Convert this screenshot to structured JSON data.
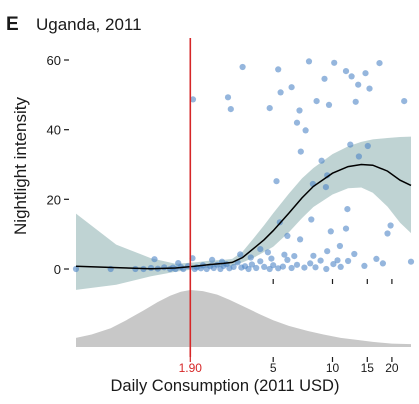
{
  "panel_label": "E",
  "colors": {
    "points": "#4f86c6",
    "band": "#a9c4c4",
    "curve": "#000000",
    "density": "#c8c8c8",
    "threshold": "#d62728"
  },
  "chart_data": {
    "type": "scatter",
    "title": "Uganda, 2011",
    "xlabel": "Daily Consumption (2011 USD)",
    "ylabel": "Nightlight intensity",
    "x_scale": "log",
    "xlim": [
      0.5,
      25
    ],
    "ylim": [
      0,
      60
    ],
    "y_ticks": [
      0,
      20,
      40,
      60
    ],
    "x_ticks": [
      {
        "value": 1.9,
        "label": "1.90",
        "highlight": true
      },
      {
        "value": 5,
        "label": "5"
      },
      {
        "value": 10,
        "label": "10"
      },
      {
        "value": 15,
        "label": "15"
      },
      {
        "value": 20,
        "label": "20"
      }
    ],
    "threshold_x": 1.9,
    "points": [
      [
        1.96,
        48.7
      ],
      [
        2.95,
        49.3
      ],
      [
        3.5,
        58
      ],
      [
        4.8,
        46.2
      ],
      [
        5.3,
        57.3
      ],
      [
        5.45,
        50.7
      ],
      [
        6.2,
        52.2
      ],
      [
        6.8,
        45.5
      ],
      [
        7.6,
        59.6
      ],
      [
        8.3,
        48.2
      ],
      [
        9.1,
        54.6
      ],
      [
        9.6,
        47.1
      ],
      [
        10.2,
        59.2
      ],
      [
        11.7,
        56.8
      ],
      [
        12.5,
        55.3
      ],
      [
        13.5,
        52.9
      ],
      [
        13.1,
        48
      ],
      [
        14.7,
        56.2
      ],
      [
        15.4,
        51.8
      ],
      [
        17.3,
        59.1
      ],
      [
        23.1,
        48.2
      ],
      [
        6.6,
        42
      ],
      [
        7.3,
        39.8
      ],
      [
        3.05,
        45.9
      ],
      [
        6.9,
        33.7
      ],
      [
        8.8,
        31.1
      ],
      [
        9.4,
        26.9
      ],
      [
        12.3,
        35.7
      ],
      [
        13.6,
        32.3
      ],
      [
        15.1,
        35.3
      ],
      [
        5.2,
        25.2
      ],
      [
        7.95,
        24.4
      ],
      [
        9.25,
        23.5
      ],
      [
        11.9,
        17.2
      ],
      [
        19,
        10.2
      ],
      [
        19.7,
        12.5
      ],
      [
        5.4,
        13.4
      ],
      [
        7.8,
        14.2
      ],
      [
        11.7,
        11.6
      ],
      [
        5.9,
        9.5
      ],
      [
        6.85,
        8.5
      ],
      [
        9.4,
        5.1
      ],
      [
        10.9,
        6.6
      ],
      [
        12.9,
        4.3
      ],
      [
        16.7,
        2.9
      ],
      [
        25,
        2.1
      ],
      [
        4.3,
        5.7
      ],
      [
        4.7,
        4.8
      ],
      [
        3.4,
        4.2
      ],
      [
        9.8,
        10.8
      ],
      [
        0.5,
        0
      ],
      [
        0.75,
        0
      ],
      [
        1.0,
        0
      ],
      [
        1.1,
        0
      ],
      [
        1.2,
        0.3
      ],
      [
        1.3,
        0.1
      ],
      [
        1.4,
        0.5
      ],
      [
        1.5,
        0
      ],
      [
        1.55,
        0.4
      ],
      [
        1.6,
        0
      ],
      [
        1.7,
        0.6
      ],
      [
        1.75,
        0
      ],
      [
        1.85,
        0.8
      ],
      [
        2.0,
        0
      ],
      [
        2.05,
        0.5
      ],
      [
        2.15,
        0.2
      ],
      [
        2.2,
        1.1
      ],
      [
        2.3,
        0
      ],
      [
        2.4,
        0.8
      ],
      [
        2.5,
        0.3
      ],
      [
        2.6,
        1.2
      ],
      [
        2.7,
        0
      ],
      [
        2.8,
        0.9
      ],
      [
        2.9,
        1.4
      ],
      [
        3.0,
        0.2
      ],
      [
        3.15,
        0.6
      ],
      [
        3.3,
        1.9
      ],
      [
        3.45,
        0.4
      ],
      [
        3.6,
        0.8
      ],
      [
        3.75,
        0
      ],
      [
        3.9,
        1.3
      ],
      [
        4.1,
        0.3
      ],
      [
        4.3,
        2.2
      ],
      [
        4.5,
        0.6
      ],
      [
        4.8,
        0
      ],
      [
        5.0,
        1.1
      ],
      [
        5.3,
        0.2
      ],
      [
        5.6,
        0.7
      ],
      [
        5.9,
        2.6
      ],
      [
        6.2,
        0.3
      ],
      [
        6.6,
        1.2
      ],
      [
        7.2,
        0.4
      ],
      [
        7.7,
        1.6
      ],
      [
        8.2,
        0.5
      ],
      [
        8.7,
        2.4
      ],
      [
        9.3,
        0
      ],
      [
        10.1,
        1.4
      ],
      [
        11.0,
        0.6
      ],
      [
        12.0,
        2.3
      ],
      [
        14.5,
        0.9
      ],
      [
        18.0,
        1.6
      ],
      [
        1.25,
        2.8
      ],
      [
        1.95,
        3.1
      ],
      [
        2.45,
        2.6
      ],
      [
        3.85,
        3.3
      ],
      [
        4.9,
        3.0
      ],
      [
        5.7,
        4.1
      ],
      [
        6.4,
        3.7
      ],
      [
        8.0,
        3.8
      ],
      [
        10.6,
        2.5
      ],
      [
        1.65,
        1.7
      ],
      [
        2.75,
        2.1
      ]
    ],
    "fit_curve": [
      [
        0.5,
        0.8
      ],
      [
        0.8,
        0.4
      ],
      [
        1.2,
        0.1
      ],
      [
        1.6,
        0.3
      ],
      [
        2.0,
        0.8
      ],
      [
        2.4,
        1.3
      ],
      [
        2.8,
        1.6
      ],
      [
        3.1,
        1.9
      ],
      [
        3.5,
        3.3
      ],
      [
        4.0,
        6
      ],
      [
        4.5,
        8.4
      ],
      [
        5.0,
        11
      ],
      [
        6.0,
        16
      ],
      [
        7.0,
        20.4
      ],
      [
        8.0,
        23.7
      ],
      [
        10.0,
        27.5
      ],
      [
        12.0,
        29.4
      ],
      [
        14.0,
        30
      ],
      [
        16.0,
        29.8
      ],
      [
        19.0,
        28.1
      ],
      [
        22.0,
        25.5
      ],
      [
        25.0,
        24
      ]
    ],
    "band_upper": [
      [
        0.5,
        15.9
      ],
      [
        0.8,
        7
      ],
      [
        1.2,
        3.1
      ],
      [
        1.6,
        1.5
      ],
      [
        2.0,
        1.9
      ],
      [
        2.4,
        2.4
      ],
      [
        2.8,
        2.6
      ],
      [
        3.1,
        2.9
      ],
      [
        3.5,
        5
      ],
      [
        4.0,
        9
      ],
      [
        4.5,
        12.6
      ],
      [
        5.0,
        16
      ],
      [
        6.0,
        21.6
      ],
      [
        7.0,
        26
      ],
      [
        8.0,
        29
      ],
      [
        10.0,
        33
      ],
      [
        12.0,
        35.2
      ],
      [
        14.0,
        36.5
      ],
      [
        16.0,
        37.2
      ],
      [
        19.0,
        37.6
      ],
      [
        22.0,
        37.9
      ],
      [
        25.0,
        38
      ]
    ],
    "band_lower": [
      [
        0.5,
        -6
      ],
      [
        0.8,
        -4.5
      ],
      [
        1.2,
        -2.1
      ],
      [
        1.6,
        -0.8
      ],
      [
        2.0,
        -0.1
      ],
      [
        2.4,
        0.4
      ],
      [
        2.8,
        0.7
      ],
      [
        3.1,
        0.9
      ],
      [
        3.5,
        1.9
      ],
      [
        4.0,
        3.3
      ],
      [
        4.5,
        4.9
      ],
      [
        5.0,
        6.4
      ],
      [
        6.0,
        10.5
      ],
      [
        7.0,
        14.6
      ],
      [
        8.0,
        17.8
      ],
      [
        10.0,
        21.4
      ],
      [
        12.0,
        23.2
      ],
      [
        14.0,
        23.4
      ],
      [
        16.0,
        21.9
      ],
      [
        19.0,
        17.9
      ],
      [
        22.0,
        13.3
      ],
      [
        25.0,
        10.3
      ]
    ],
    "density_curve": [
      [
        0.5,
        0.16
      ],
      [
        0.6,
        0.22
      ],
      [
        0.75,
        0.33
      ],
      [
        0.9,
        0.47
      ],
      [
        1.1,
        0.64
      ],
      [
        1.3,
        0.79
      ],
      [
        1.5,
        0.9
      ],
      [
        1.7,
        0.97
      ],
      [
        1.9,
        1.0
      ],
      [
        2.2,
        0.98
      ],
      [
        2.6,
        0.92
      ],
      [
        3.0,
        0.83
      ],
      [
        3.6,
        0.7
      ],
      [
        4.3,
        0.57
      ],
      [
        5.0,
        0.47
      ],
      [
        6.0,
        0.37
      ],
      [
        7.5,
        0.28
      ],
      [
        9.0,
        0.22
      ],
      [
        11.0,
        0.16
      ],
      [
        13.0,
        0.13
      ],
      [
        16.0,
        0.09
      ],
      [
        20.0,
        0.06
      ],
      [
        25.0,
        0.05
      ]
    ]
  }
}
